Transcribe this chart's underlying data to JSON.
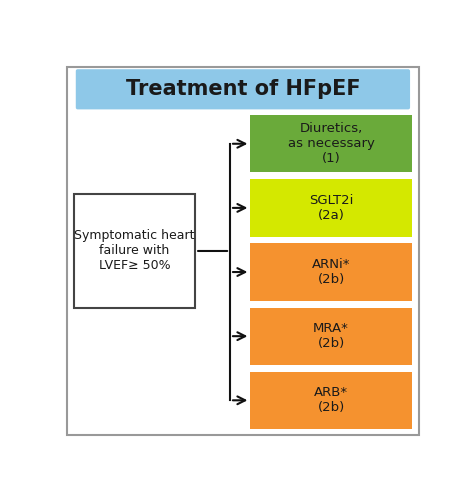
{
  "title": "Treatment of HFpEF",
  "title_bg": "#8EC8E8",
  "title_fontsize": 15,
  "left_box_text": "Symptomatic heart\nfailure with\nLVEF≥ 50%",
  "left_box_color": "#ffffff",
  "left_box_border": "#444444",
  "right_boxes": [
    {
      "label": "Diuretics,\nas necessary\n(1)",
      "color": "#6aaa3a"
    },
    {
      "label": "SGLT2i\n(2a)",
      "color": "#d4e800"
    },
    {
      "label": "ARNi*\n(2b)",
      "color": "#f5922f"
    },
    {
      "label": "MRA*\n(2b)",
      "color": "#f5922f"
    },
    {
      "label": "ARB*\n(2b)",
      "color": "#f5922f"
    }
  ],
  "background_color": "#ffffff",
  "outer_border_color": "#999999",
  "text_color": "#1a1a1a",
  "arrow_color": "#111111",
  "fig_width": 4.74,
  "fig_height": 4.97,
  "dpi": 100
}
